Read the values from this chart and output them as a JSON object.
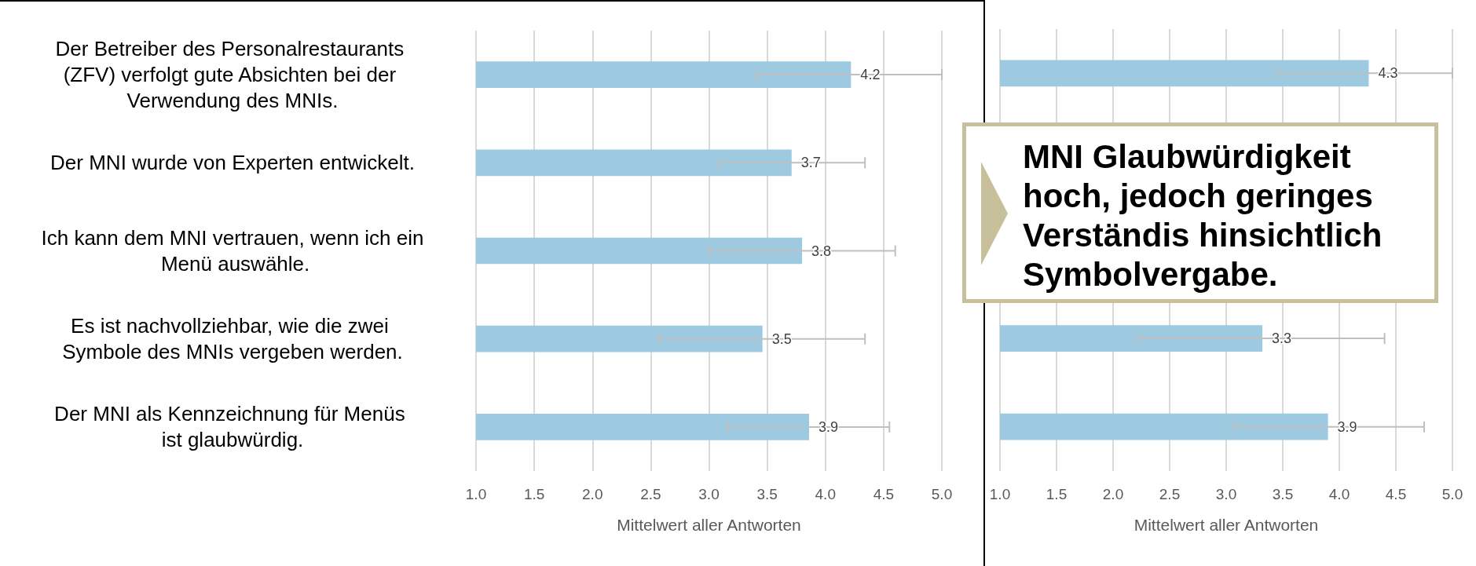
{
  "chart_data": [
    {
      "type": "bar",
      "orientation": "horizontal",
      "xlabel": "Mittelwert aller Antworten",
      "categories": [
        "Der Betreiber des Personalrestaurants (ZFV) verfolgt gute Absichten bei der Verwendung des MNIs.",
        "Der MNI wurde von Experten entwickelt.",
        "Ich kann dem MNI vertrauen, wenn ich ein Menü auswähle.",
        "Es ist nachvollziehbar, wie die zwei Symbole des MNIs vergeben werden.",
        "Der MNI als Kennzeichnung für Menüs ist glaubwürdig."
      ],
      "values": [
        4.22,
        3.71,
        3.8,
        3.46,
        3.86
      ],
      "errors": [
        [
          3.41,
          5.0
        ],
        [
          3.09,
          4.34
        ],
        [
          3.0,
          4.6
        ],
        [
          2.57,
          4.34
        ],
        [
          3.16,
          4.55
        ]
      ],
      "value_labels": [
        "4.2",
        "3.7",
        "3.8",
        "3.5",
        "3.9"
      ],
      "color": "#9ecae1",
      "xlim": [
        1,
        5
      ],
      "xticks": [
        {
          "value": 1,
          "label": "1.0"
        },
        {
          "value": 1.5,
          "label": "1.5"
        },
        {
          "value": 2,
          "label": "2.0"
        },
        {
          "value": 2.5,
          "label": "2.5"
        },
        {
          "value": 3,
          "label": "3.0"
        },
        {
          "value": 3.5,
          "label": "3.5"
        },
        {
          "value": 4,
          "label": "4.0"
        },
        {
          "value": 4.5,
          "label": "4.5"
        },
        {
          "value": 5,
          "label": "5.0"
        }
      ],
      "grid": "x"
    },
    {
      "type": "bar",
      "orientation": "horizontal",
      "xlabel": "Mittelwert aller Antworten",
      "categories": [
        null,
        null,
        null,
        null,
        null
      ],
      "values": [
        4.26,
        null,
        null,
        3.32,
        3.9
      ],
      "errors": [
        [
          3.46,
          5.0
        ],
        null,
        null,
        [
          2.23,
          4.4
        ],
        [
          3.05,
          4.75
        ]
      ],
      "value_labels": [
        "4.3",
        null,
        null,
        "3.3",
        "3.9"
      ],
      "color": "#9ecae1",
      "xlim": [
        1,
        5
      ],
      "xticks": [
        {
          "value": 1,
          "label": "1.0"
        },
        {
          "value": 1.5,
          "label": "1.5"
        },
        {
          "value": 2,
          "label": "2.0"
        },
        {
          "value": 2.5,
          "label": "2.5"
        },
        {
          "value": 3,
          "label": "3.0"
        },
        {
          "value": 3.5,
          "label": "3.5"
        },
        {
          "value": 4,
          "label": "4.0"
        },
        {
          "value": 4.5,
          "label": "4.5"
        },
        {
          "value": 5,
          "label": "5.0"
        }
      ],
      "grid": "x",
      "tick_labels": "x",
      "annotations": [
        "MNI Glaubwürdigkeit hoch, jedoch geringes Verständis hinsichtlich Symbolvergabe."
      ]
    }
  ]
}
